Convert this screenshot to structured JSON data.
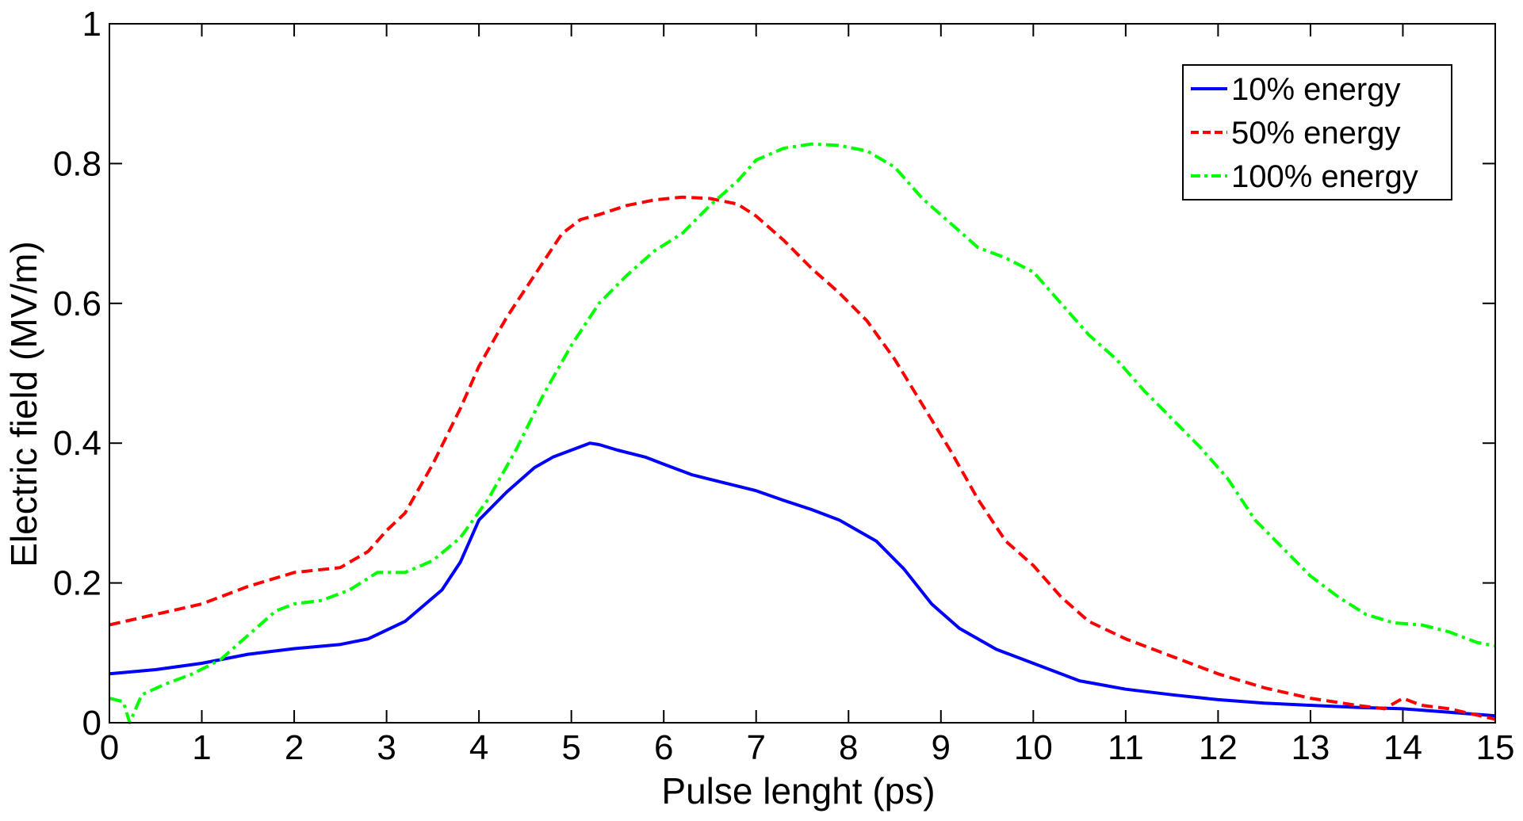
{
  "chart_data": {
    "type": "line",
    "title": "",
    "xlabel": "Pulse lenght (ps)",
    "ylabel": "Electric field (MV/m)",
    "xlim": [
      0,
      15
    ],
    "ylim": [
      0,
      1
    ],
    "xticks": [
      "0",
      "1",
      "2",
      "3",
      "4",
      "5",
      "6",
      "7",
      "8",
      "9",
      "10",
      "11",
      "12",
      "13",
      "14",
      "15"
    ],
    "yticks": [
      "0",
      "0.2",
      "0.4",
      "0.6",
      "0.8",
      "1"
    ],
    "grid": false,
    "legend_position": "top-right",
    "series": [
      {
        "name": "10% energy",
        "color": "#0000ff",
        "style": "solid",
        "x": [
          0,
          0.5,
          1,
          1.5,
          2,
          2.5,
          2.8,
          3.2,
          3.6,
          3.8,
          4,
          4.3,
          4.6,
          4.8,
          5,
          5.2,
          5.3,
          5.5,
          5.8,
          6,
          6.3,
          6.6,
          7,
          7.3,
          7.6,
          7.9,
          8.1,
          8.3,
          8.6,
          8.9,
          9.2,
          9.6,
          10,
          10.5,
          11,
          11.5,
          12,
          12.5,
          13,
          13.5,
          14,
          14.5,
          15
        ],
        "y": [
          0.07,
          0.076,
          0.085,
          0.098,
          0.106,
          0.112,
          0.12,
          0.145,
          0.19,
          0.23,
          0.29,
          0.33,
          0.365,
          0.38,
          0.39,
          0.4,
          0.398,
          0.39,
          0.38,
          0.37,
          0.355,
          0.345,
          0.332,
          0.318,
          0.305,
          0.29,
          0.275,
          0.26,
          0.22,
          0.17,
          0.135,
          0.105,
          0.085,
          0.06,
          0.048,
          0.04,
          0.033,
          0.028,
          0.025,
          0.022,
          0.02,
          0.015,
          0.01
        ]
      },
      {
        "name": "50% energy",
        "color": "#ff0000",
        "style": "dashed",
        "x": [
          0,
          0.5,
          1,
          1.5,
          2,
          2.5,
          2.8,
          3,
          3.2,
          3.5,
          3.8,
          4,
          4.3,
          4.6,
          4.9,
          5.1,
          5.3,
          5.6,
          5.9,
          6.2,
          6.5,
          6.8,
          7,
          7.3,
          7.6,
          7.9,
          8.2,
          8.5,
          8.8,
          9.1,
          9.4,
          9.7,
          10,
          10.3,
          10.6,
          11,
          11.5,
          12,
          12.5,
          13,
          13.5,
          13.8,
          14,
          14.2,
          14.5,
          15
        ],
        "y": [
          0.14,
          0.155,
          0.17,
          0.195,
          0.215,
          0.222,
          0.245,
          0.275,
          0.3,
          0.37,
          0.45,
          0.51,
          0.58,
          0.64,
          0.7,
          0.72,
          0.727,
          0.74,
          0.748,
          0.752,
          0.75,
          0.742,
          0.725,
          0.69,
          0.65,
          0.615,
          0.575,
          0.52,
          0.455,
          0.39,
          0.32,
          0.26,
          0.225,
          0.18,
          0.145,
          0.12,
          0.095,
          0.07,
          0.05,
          0.035,
          0.025,
          0.02,
          0.035,
          0.025,
          0.02,
          0.005
        ]
      },
      {
        "name": "100% energy",
        "color": "#00ff00",
        "style": "dash-dot",
        "x": [
          0,
          0.15,
          0.22,
          0.35,
          0.6,
          0.9,
          1.2,
          1.5,
          1.8,
          2,
          2.3,
          2.6,
          2.9,
          3.2,
          3.5,
          3.8,
          4.1,
          4.4,
          4.7,
          5,
          5.3,
          5.6,
          5.9,
          6.2,
          6.5,
          6.8,
          7,
          7.3,
          7.6,
          7.9,
          8.2,
          8.5,
          8.8,
          9.1,
          9.4,
          9.7,
          10,
          10.3,
          10.6,
          10.9,
          11.2,
          11.5,
          11.8,
          12.1,
          12.4,
          12.7,
          13,
          13.3,
          13.6,
          13.9,
          14.2,
          14.5,
          14.8,
          15
        ],
        "y": [
          0.035,
          0.03,
          0.0,
          0.04,
          0.055,
          0.07,
          0.09,
          0.125,
          0.16,
          0.17,
          0.175,
          0.19,
          0.215,
          0.215,
          0.232,
          0.265,
          0.32,
          0.39,
          0.47,
          0.54,
          0.6,
          0.64,
          0.675,
          0.7,
          0.74,
          0.775,
          0.805,
          0.822,
          0.828,
          0.826,
          0.818,
          0.795,
          0.75,
          0.715,
          0.68,
          0.665,
          0.645,
          0.6,
          0.555,
          0.52,
          0.475,
          0.435,
          0.395,
          0.35,
          0.29,
          0.25,
          0.21,
          0.18,
          0.155,
          0.143,
          0.14,
          0.13,
          0.115,
          0.11
        ]
      }
    ]
  }
}
